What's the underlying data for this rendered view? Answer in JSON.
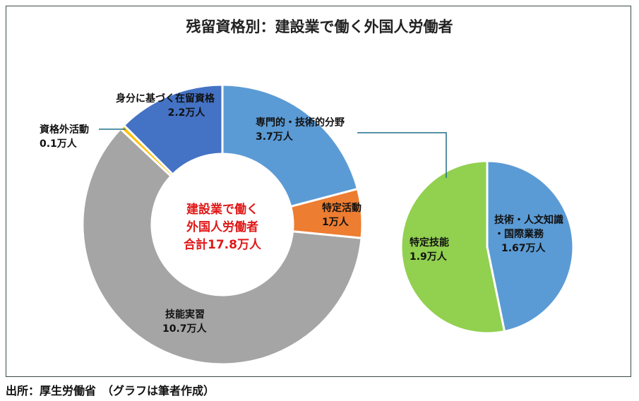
{
  "chart_data": [
    {
      "type": "pie",
      "title": "残留資格別：建設業で働く外国人労働者",
      "center_text": [
        "建設業で働く",
        "外国人労働者",
        "合計17.8万人"
      ],
      "unit": "万人",
      "slices": [
        {
          "name": "専門的・技術的分野",
          "value": 3.7,
          "label": "3.7万人",
          "color": "#5b9bd5"
        },
        {
          "name": "特定活動",
          "value": 1,
          "label": "1万人",
          "color": "#ed7d31"
        },
        {
          "name": "技能実習",
          "value": 10.7,
          "label": "10.7万人",
          "color": "#a5a5a5"
        },
        {
          "name": "資格外活動",
          "value": 0.1,
          "label": "0.1万人",
          "color": "#ffc000"
        },
        {
          "name": "身分に基づく在留資格",
          "value": 2.2,
          "label": "2.2万人",
          "color": "#4472c4"
        }
      ]
    },
    {
      "type": "pie",
      "unit": "万人",
      "slices": [
        {
          "name": "技術・人文知識・国際業務",
          "name_lines": [
            "技術・人文知識",
            "・国際業務"
          ],
          "value": 1.67,
          "label": "1.67万人",
          "color": "#5b9bd5"
        },
        {
          "name": "特定技能",
          "value": 1.9,
          "label": "1.9万人",
          "color": "#92d050"
        }
      ]
    }
  ],
  "source": "出所：厚生労働省　（グラフは筆者作成）"
}
